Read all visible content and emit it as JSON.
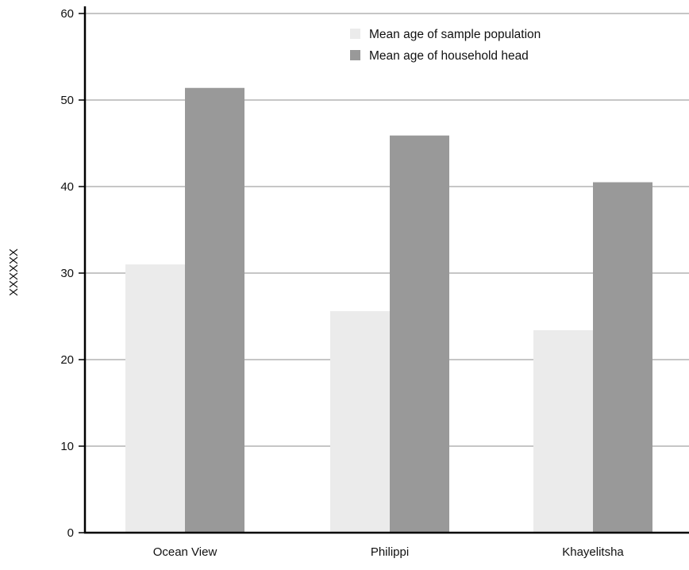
{
  "chart_data": {
    "type": "bar",
    "title": "",
    "xlabel": "",
    "ylabel": "XXXXXX",
    "categories": [
      "Ocean View",
      "Philippi",
      "Khayelitsha"
    ],
    "series": [
      {
        "name": "Mean age of sample population",
        "values": [
          31.0,
          25.6,
          23.4
        ],
        "color": "#ebebeb"
      },
      {
        "name": "Mean age of household head",
        "values": [
          51.4,
          45.9,
          40.5
        ],
        "color": "#999999"
      }
    ],
    "ylim": [
      0,
      60
    ],
    "yticks": [
      "0",
      "10",
      "20",
      "30",
      "40",
      "50",
      "60"
    ],
    "grid": true,
    "legend_position": "top-right"
  }
}
